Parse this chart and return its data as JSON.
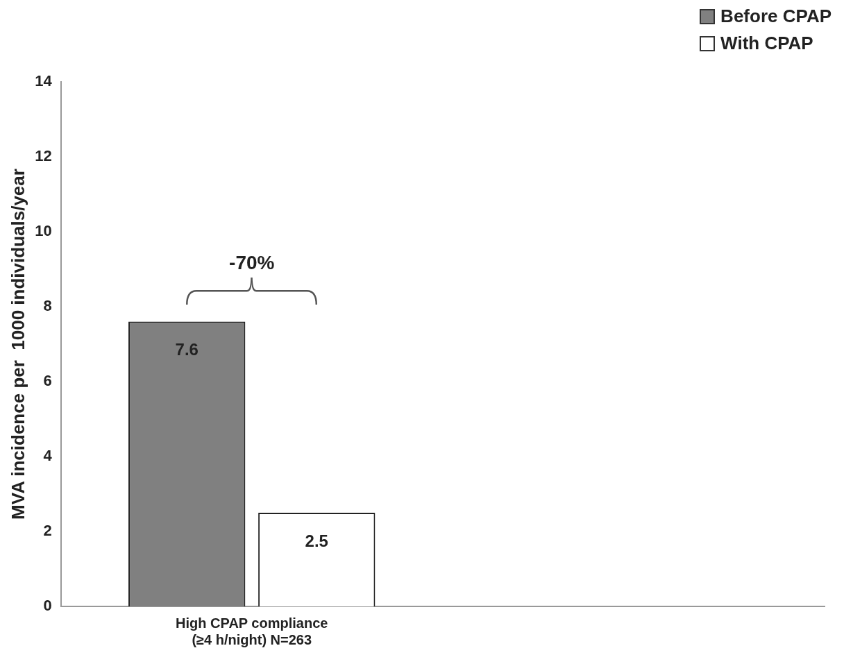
{
  "chart_data": {
    "type": "bar",
    "ylabel": "MVA incidence per  1000 individuals/year",
    "categories": [
      "High CPAP compliance\n(≥4 h/night) N=263",
      null
    ],
    "series": [
      {
        "name": "Before CPAP",
        "color": "#808080",
        "values": [
          7.6,
          null
        ]
      },
      {
        "name": "With CPAP",
        "color": "#ffffff",
        "values": [
          2.5,
          null
        ]
      }
    ],
    "ylim": [
      0,
      14
    ],
    "yticks": [
      0,
      2,
      4,
      6,
      8,
      10,
      12,
      14
    ],
    "grid": false,
    "legend": "top right",
    "data_labels": true,
    "annotations": [
      "-70%"
    ]
  }
}
